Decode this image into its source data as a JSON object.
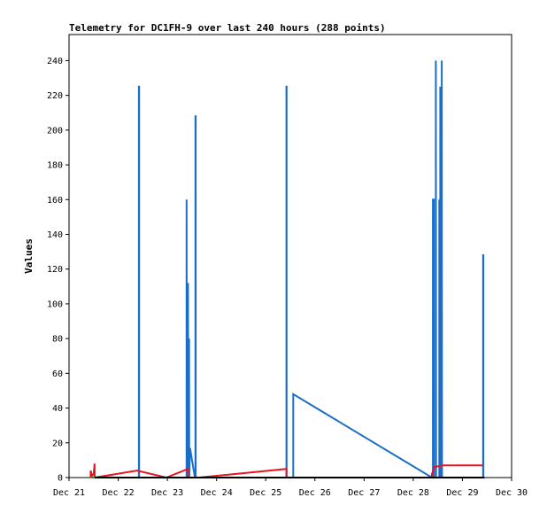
{
  "chart_data": {
    "type": "line",
    "title": "Telemetry for DC1FH-9 over last 240 hours (288 points)",
    "ylabel": "Values",
    "xlabel": "",
    "xlim": [
      0,
      9
    ],
    "ylim": [
      0,
      255
    ],
    "x_ticks": [
      {
        "x": 0,
        "label": "Dec 21"
      },
      {
        "x": 1,
        "label": "Dec 22"
      },
      {
        "x": 2,
        "label": "Dec 23"
      },
      {
        "x": 3,
        "label": "Dec 24"
      },
      {
        "x": 4,
        "label": "Dec 25"
      },
      {
        "x": 5,
        "label": "Dec 26"
      },
      {
        "x": 6,
        "label": "Dec 27"
      },
      {
        "x": 7,
        "label": "Dec 28"
      },
      {
        "x": 8,
        "label": "Dec 29"
      },
      {
        "x": 9,
        "label": "Dec 30"
      }
    ],
    "y_ticks": [
      0,
      20,
      40,
      60,
      80,
      100,
      120,
      140,
      160,
      180,
      200,
      220,
      240
    ],
    "grid": false,
    "series": [
      {
        "color": "#1a6ec8",
        "points": [
          [
            1.42,
            0
          ],
          [
            1.42,
            225
          ],
          [
            1.425,
            225
          ],
          [
            1.425,
            0
          ],
          [
            2.39,
            0
          ],
          [
            2.39,
            160
          ],
          [
            2.395,
            0
          ],
          [
            2.42,
            0
          ],
          [
            2.42,
            112
          ],
          [
            2.425,
            0
          ],
          [
            2.44,
            0
          ],
          [
            2.44,
            80
          ],
          [
            2.445,
            0
          ],
          [
            2.46,
            17
          ],
          [
            2.56,
            0
          ],
          [
            2.57,
            0
          ],
          [
            2.57,
            208
          ],
          [
            2.575,
            208
          ],
          [
            2.575,
            0
          ],
          [
            4.42,
            0
          ],
          [
            4.42,
            225
          ],
          [
            4.425,
            225
          ],
          [
            4.425,
            0
          ],
          [
            4.56,
            0
          ],
          [
            4.56,
            48
          ],
          [
            7.32,
            1
          ],
          [
            7.4,
            0
          ],
          [
            7.4,
            160
          ],
          [
            7.42,
            160
          ],
          [
            7.42,
            0
          ],
          [
            7.46,
            0
          ],
          [
            7.46,
            240
          ],
          [
            7.465,
            0
          ],
          [
            7.53,
            0
          ],
          [
            7.53,
            160
          ],
          [
            7.535,
            0
          ],
          [
            7.55,
            0
          ],
          [
            7.55,
            225
          ],
          [
            7.555,
            0
          ],
          [
            7.58,
            0
          ],
          [
            7.58,
            240
          ],
          [
            7.585,
            0
          ],
          [
            8.42,
            0
          ],
          [
            8.42,
            128
          ],
          [
            8.425,
            128
          ],
          [
            8.425,
            0
          ]
        ]
      },
      {
        "color": "#e8141e",
        "points": [
          [
            0.44,
            0
          ],
          [
            0.44,
            4
          ],
          [
            0.47,
            1
          ],
          [
            0.5,
            2
          ],
          [
            0.52,
            8
          ],
          [
            0.52,
            0
          ],
          [
            1.38,
            4
          ],
          [
            1.98,
            0
          ],
          [
            2.42,
            5
          ],
          [
            2.42,
            0
          ],
          [
            2.56,
            0
          ],
          [
            2.64,
            0
          ],
          [
            4.42,
            5
          ],
          [
            4.42,
            0
          ],
          [
            7.38,
            0
          ],
          [
            7.38,
            2
          ],
          [
            7.42,
            5
          ],
          [
            7.42,
            6
          ],
          [
            7.6,
            7
          ],
          [
            8.42,
            7
          ]
        ]
      },
      {
        "color": "#1e9c1e",
        "points": [
          [
            0.46,
            0
          ],
          [
            8.45,
            0
          ]
        ]
      },
      {
        "color": "#000000",
        "points": [
          [
            0.52,
            0
          ],
          [
            8.45,
            0
          ]
        ]
      }
    ]
  }
}
